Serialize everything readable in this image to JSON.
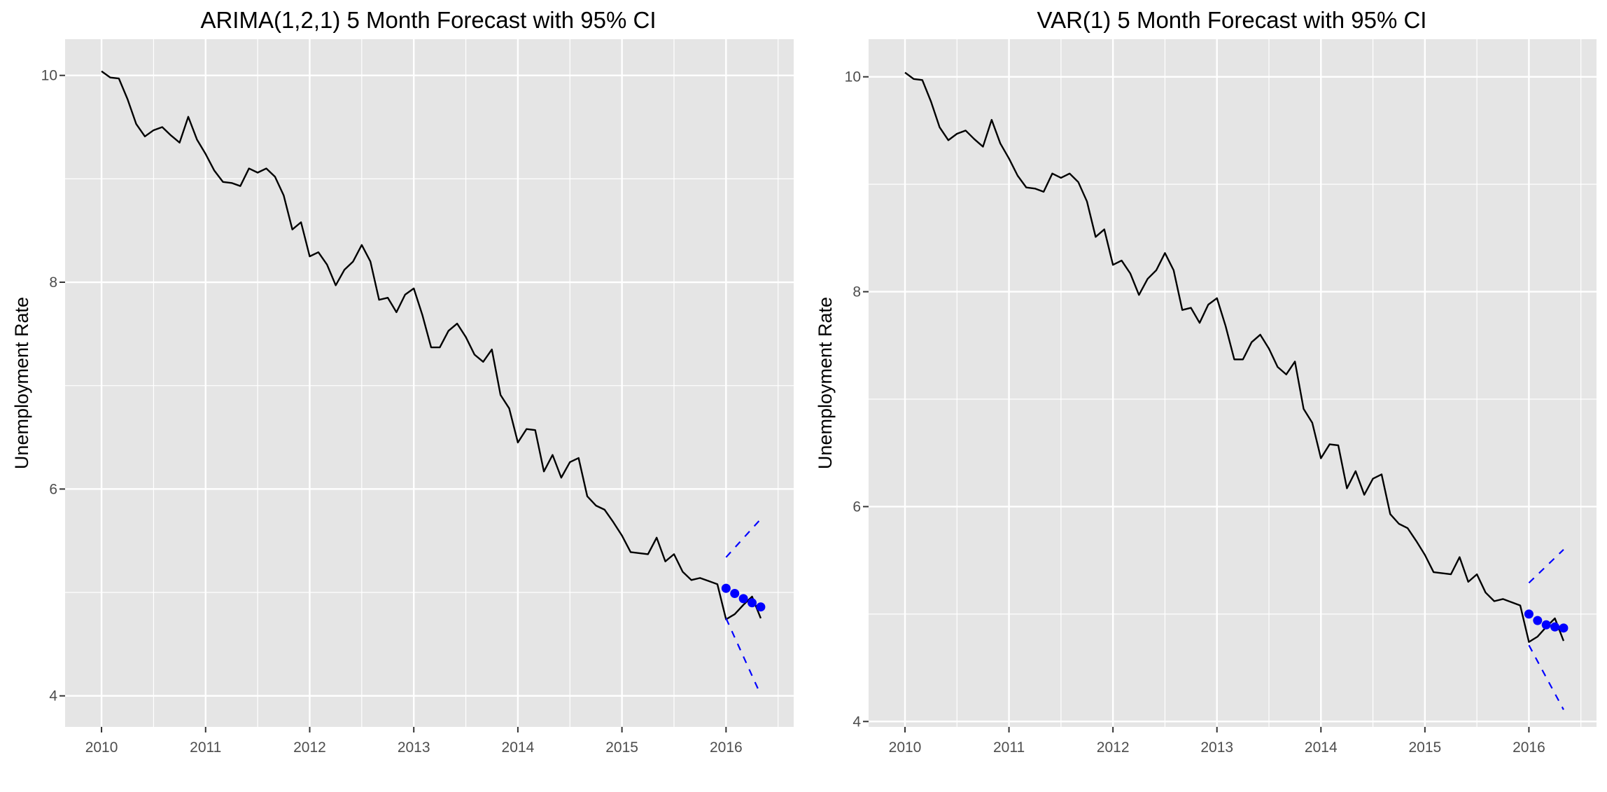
{
  "chart_data": [
    {
      "type": "line",
      "title": "ARIMA(1,2,1) 5 Month Forecast with 95% CI",
      "xlabel": "",
      "ylabel": "Unemployment Rate",
      "xlim": [
        2009.65,
        2016.65
      ],
      "ylim": [
        3.7,
        10.35
      ],
      "x_ticks": [
        2010,
        2011,
        2012,
        2013,
        2014,
        2015,
        2016
      ],
      "x_tick_labels": [
        "2010",
        "2011",
        "2012",
        "2013",
        "2014",
        "2015",
        "2016"
      ],
      "y_ticks": [
        4,
        6,
        8,
        10
      ],
      "y_tick_labels": [
        "4",
        "6",
        "8",
        "10"
      ],
      "grid": true,
      "legend": "none",
      "colors": {
        "series": "#000000",
        "forecast": "#0000ff",
        "ci": "#0000ff",
        "panel": "#e5e5e5",
        "grid": "#ffffff"
      },
      "series": [
        {
          "style": "solid",
          "x_start": 2010,
          "x_step": 0.0833333,
          "values": [
            10.04,
            9.98,
            9.97,
            9.77,
            9.53,
            9.41,
            9.47,
            9.5,
            9.42,
            9.35,
            9.6,
            9.38,
            9.24,
            9.08,
            8.97,
            8.96,
            8.93,
            9.1,
            9.06,
            9.1,
            9.02,
            8.84,
            8.51,
            8.58,
            8.25,
            8.29,
            8.17,
            7.97,
            8.12,
            8.2,
            8.36,
            8.2,
            7.83,
            7.85,
            7.71,
            7.88,
            7.94,
            7.68,
            7.37,
            7.37,
            7.53,
            7.6,
            7.47,
            7.3,
            7.23,
            7.35,
            6.91,
            6.78,
            6.45,
            6.58,
            6.57,
            6.17,
            6.33,
            6.11,
            6.26,
            6.3,
            5.93,
            5.84,
            5.8,
            5.68,
            5.55,
            5.39,
            5.38,
            5.37,
            5.53,
            5.3,
            5.37,
            5.2,
            5.12,
            5.14,
            5.11,
            5.08,
            4.74,
            4.79,
            4.88,
            4.96,
            4.75
          ]
        },
        {
          "style": "points",
          "x": [
            2016.0,
            2016.0833,
            2016.1667,
            2016.25,
            2016.3333
          ],
          "values": [
            5.04,
            4.99,
            4.94,
            4.9,
            4.86
          ]
        },
        {
          "style": "dashed",
          "x": [
            2016.0,
            2016.3333
          ],
          "values": [
            5.34,
            5.71
          ]
        },
        {
          "style": "dashed",
          "x": [
            2016.0,
            2016.3333
          ],
          "values": [
            4.75,
            4.01
          ]
        }
      ]
    },
    {
      "type": "line",
      "title": "VAR(1) 5 Month Forecast with 95% CI",
      "xlabel": "",
      "ylabel": "Unemployment Rate",
      "xlim": [
        2009.65,
        2016.65
      ],
      "ylim": [
        3.95,
        10.35
      ],
      "x_ticks": [
        2010,
        2011,
        2012,
        2013,
        2014,
        2015,
        2016
      ],
      "x_tick_labels": [
        "2010",
        "2011",
        "2012",
        "2013",
        "2014",
        "2015",
        "2016"
      ],
      "y_ticks": [
        4,
        6,
        8,
        10
      ],
      "y_tick_labels": [
        "4",
        "6",
        "8",
        "10"
      ],
      "grid": true,
      "legend": "none",
      "colors": {
        "series": "#000000",
        "forecast": "#0000ff",
        "ci": "#0000ff",
        "panel": "#e5e5e5",
        "grid": "#ffffff"
      },
      "series": [
        {
          "style": "solid",
          "x_start": 2010,
          "x_step": 0.0833333,
          "values": [
            10.04,
            9.98,
            9.97,
            9.77,
            9.53,
            9.41,
            9.47,
            9.5,
            9.42,
            9.35,
            9.6,
            9.38,
            9.24,
            9.08,
            8.97,
            8.96,
            8.93,
            9.1,
            9.06,
            9.1,
            9.02,
            8.84,
            8.51,
            8.58,
            8.25,
            8.29,
            8.17,
            7.97,
            8.12,
            8.2,
            8.36,
            8.2,
            7.83,
            7.85,
            7.71,
            7.88,
            7.94,
            7.68,
            7.37,
            7.37,
            7.53,
            7.6,
            7.47,
            7.3,
            7.23,
            7.35,
            6.91,
            6.78,
            6.45,
            6.58,
            6.57,
            6.17,
            6.33,
            6.11,
            6.26,
            6.3,
            5.93,
            5.84,
            5.8,
            5.68,
            5.55,
            5.39,
            5.38,
            5.37,
            5.53,
            5.3,
            5.37,
            5.2,
            5.12,
            5.14,
            5.11,
            5.08,
            4.74,
            4.79,
            4.88,
            4.96,
            4.75
          ]
        },
        {
          "style": "points",
          "x": [
            2016.0,
            2016.0833,
            2016.1667,
            2016.25,
            2016.3333
          ],
          "values": [
            5.0,
            4.94,
            4.9,
            4.88,
            4.87
          ]
        },
        {
          "style": "dashed",
          "x": [
            2016.0,
            2016.3333
          ],
          "values": [
            5.29,
            5.6
          ]
        },
        {
          "style": "dashed",
          "x": [
            2016.0,
            2016.3333
          ],
          "values": [
            4.71,
            4.11
          ]
        }
      ]
    }
  ]
}
